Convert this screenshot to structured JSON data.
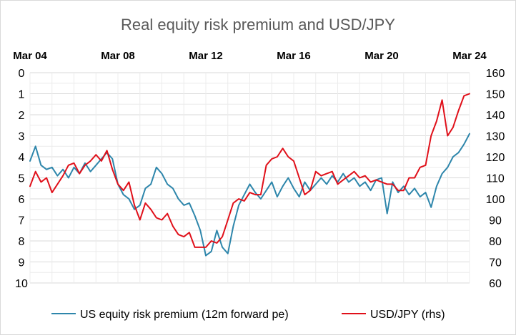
{
  "chart_data": {
    "type": "line",
    "title": "Real equity risk premium and USD/JPY",
    "x_axis": {
      "position": "top",
      "range": [
        "Mar 04",
        "Mar 24"
      ],
      "ticks": [
        "Mar 04",
        "Mar 08",
        "Mar 12",
        "Mar 16",
        "Mar 20",
        "Mar 24"
      ]
    },
    "y_axis_left": {
      "reversed": true,
      "ylim": [
        0,
        10
      ],
      "ticks": [
        "0",
        "1",
        "2",
        "3",
        "4",
        "5",
        "6",
        "7",
        "8",
        "9",
        "10"
      ]
    },
    "y_axis_right": {
      "ylim": [
        60,
        160
      ],
      "ticks": [
        "160",
        "150",
        "140",
        "130",
        "120",
        "110",
        "100",
        "90",
        "80",
        "70",
        "60"
      ]
    },
    "grid": true,
    "legend_placement": "bottom",
    "series": [
      {
        "name": "US equity risk premium (12m forward pe)",
        "axis": "left",
        "color": "#2e86ab",
        "points": [
          [
            2004.0,
            4.2
          ],
          [
            2004.25,
            3.5
          ],
          [
            2004.5,
            4.4
          ],
          [
            2004.75,
            4.6
          ],
          [
            2005.0,
            4.5
          ],
          [
            2005.25,
            4.9
          ],
          [
            2005.5,
            4.6
          ],
          [
            2005.75,
            5.0
          ],
          [
            2006.0,
            4.5
          ],
          [
            2006.25,
            4.8
          ],
          [
            2006.5,
            4.3
          ],
          [
            2006.75,
            4.7
          ],
          [
            2007.0,
            4.4
          ],
          [
            2007.25,
            4.1
          ],
          [
            2007.5,
            3.8
          ],
          [
            2007.75,
            4.1
          ],
          [
            2008.0,
            5.3
          ],
          [
            2008.25,
            5.8
          ],
          [
            2008.5,
            6.0
          ],
          [
            2008.75,
            6.5
          ],
          [
            2009.0,
            6.3
          ],
          [
            2009.25,
            5.5
          ],
          [
            2009.5,
            5.3
          ],
          [
            2009.75,
            4.5
          ],
          [
            2010.0,
            4.8
          ],
          [
            2010.25,
            5.3
          ],
          [
            2010.5,
            5.5
          ],
          [
            2010.75,
            6.0
          ],
          [
            2011.0,
            6.3
          ],
          [
            2011.25,
            6.2
          ],
          [
            2011.5,
            6.8
          ],
          [
            2011.75,
            7.5
          ],
          [
            2012.0,
            8.7
          ],
          [
            2012.25,
            8.5
          ],
          [
            2012.5,
            7.5
          ],
          [
            2012.75,
            8.3
          ],
          [
            2013.0,
            8.6
          ],
          [
            2013.25,
            7.3
          ],
          [
            2013.5,
            6.3
          ],
          [
            2013.75,
            5.8
          ],
          [
            2014.0,
            5.3
          ],
          [
            2014.25,
            5.7
          ],
          [
            2014.5,
            6.0
          ],
          [
            2014.75,
            5.6
          ],
          [
            2015.0,
            5.2
          ],
          [
            2015.25,
            5.9
          ],
          [
            2015.5,
            5.4
          ],
          [
            2015.75,
            5.0
          ],
          [
            2016.0,
            5.5
          ],
          [
            2016.25,
            5.9
          ],
          [
            2016.5,
            5.2
          ],
          [
            2016.75,
            5.6
          ],
          [
            2017.0,
            5.3
          ],
          [
            2017.25,
            5.0
          ],
          [
            2017.5,
            5.3
          ],
          [
            2017.75,
            4.9
          ],
          [
            2018.0,
            5.2
          ],
          [
            2018.25,
            4.8
          ],
          [
            2018.5,
            5.2
          ],
          [
            2018.75,
            5.0
          ],
          [
            2019.0,
            5.4
          ],
          [
            2019.25,
            5.2
          ],
          [
            2019.5,
            5.6
          ],
          [
            2019.75,
            5.1
          ],
          [
            2020.0,
            5.0
          ],
          [
            2020.25,
            6.7
          ],
          [
            2020.5,
            5.2
          ],
          [
            2020.75,
            5.7
          ],
          [
            2021.0,
            5.4
          ],
          [
            2021.25,
            5.8
          ],
          [
            2021.5,
            5.5
          ],
          [
            2021.75,
            5.9
          ],
          [
            2022.0,
            5.7
          ],
          [
            2022.25,
            6.4
          ],
          [
            2022.5,
            5.4
          ],
          [
            2022.75,
            4.8
          ],
          [
            2023.0,
            4.5
          ],
          [
            2023.25,
            4.0
          ],
          [
            2023.5,
            3.8
          ],
          [
            2023.75,
            3.4
          ],
          [
            2024.0,
            2.9
          ]
        ]
      },
      {
        "name": "USD/JPY (rhs)",
        "axis": "right",
        "color": "#e0101a",
        "points": [
          [
            2004.0,
            106
          ],
          [
            2004.25,
            113
          ],
          [
            2004.5,
            108
          ],
          [
            2004.75,
            110
          ],
          [
            2005.0,
            103
          ],
          [
            2005.25,
            107
          ],
          [
            2005.5,
            111
          ],
          [
            2005.75,
            116
          ],
          [
            2006.0,
            117
          ],
          [
            2006.25,
            112
          ],
          [
            2006.5,
            116
          ],
          [
            2006.75,
            118
          ],
          [
            2007.0,
            121
          ],
          [
            2007.25,
            118
          ],
          [
            2007.5,
            123
          ],
          [
            2007.75,
            114
          ],
          [
            2008.0,
            107
          ],
          [
            2008.25,
            104
          ],
          [
            2008.5,
            108
          ],
          [
            2008.75,
            97
          ],
          [
            2009.0,
            90
          ],
          [
            2009.25,
            98
          ],
          [
            2009.5,
            95
          ],
          [
            2009.75,
            91
          ],
          [
            2010.0,
            90
          ],
          [
            2010.25,
            93
          ],
          [
            2010.5,
            87
          ],
          [
            2010.75,
            83
          ],
          [
            2011.0,
            82
          ],
          [
            2011.25,
            84
          ],
          [
            2011.5,
            77
          ],
          [
            2011.75,
            77
          ],
          [
            2012.0,
            77
          ],
          [
            2012.25,
            80
          ],
          [
            2012.5,
            79
          ],
          [
            2012.75,
            82
          ],
          [
            2013.0,
            90
          ],
          [
            2013.25,
            98
          ],
          [
            2013.5,
            100
          ],
          [
            2013.75,
            99
          ],
          [
            2014.0,
            103
          ],
          [
            2014.25,
            102
          ],
          [
            2014.5,
            102
          ],
          [
            2014.75,
            116
          ],
          [
            2015.0,
            119
          ],
          [
            2015.25,
            120
          ],
          [
            2015.5,
            124
          ],
          [
            2015.75,
            120
          ],
          [
            2016.0,
            118
          ],
          [
            2016.25,
            110
          ],
          [
            2016.5,
            102
          ],
          [
            2016.75,
            104
          ],
          [
            2017.0,
            113
          ],
          [
            2017.25,
            111
          ],
          [
            2017.5,
            112
          ],
          [
            2017.75,
            113
          ],
          [
            2018.0,
            107
          ],
          [
            2018.25,
            109
          ],
          [
            2018.5,
            111
          ],
          [
            2018.75,
            113
          ],
          [
            2019.0,
            110
          ],
          [
            2019.25,
            111
          ],
          [
            2019.5,
            108
          ],
          [
            2019.75,
            109
          ],
          [
            2020.0,
            108
          ],
          [
            2020.25,
            107
          ],
          [
            2020.5,
            107
          ],
          [
            2020.75,
            104
          ],
          [
            2021.0,
            104
          ],
          [
            2021.25,
            110
          ],
          [
            2021.5,
            110
          ],
          [
            2021.75,
            115
          ],
          [
            2022.0,
            116
          ],
          [
            2022.25,
            130
          ],
          [
            2022.5,
            137
          ],
          [
            2022.75,
            147
          ],
          [
            2023.0,
            130
          ],
          [
            2023.25,
            134
          ],
          [
            2023.5,
            142
          ],
          [
            2023.75,
            149
          ],
          [
            2024.0,
            150
          ]
        ]
      }
    ]
  }
}
